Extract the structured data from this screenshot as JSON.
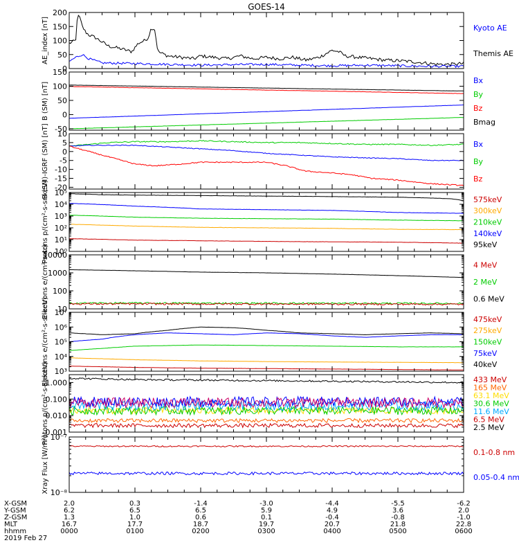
{
  "title": "GOES-14",
  "chart_data": [
    {
      "type": "line",
      "ylabel": "AE_index [nT]",
      "ylim": [
        0,
        200
      ],
      "yticks": [
        0,
        50,
        100,
        150,
        200
      ],
      "legend": [
        {
          "name": "Kyoto AE",
          "color": "#0000ff"
        },
        {
          "name": "Themis AE",
          "color": "#000000"
        }
      ],
      "series": [
        {
          "name": "Themis AE",
          "color": "#000000",
          "noise": 6,
          "x": [
            0,
            0.1,
            0.12,
            0.15,
            0.2,
            0.25,
            0.3,
            0.4,
            0.6,
            0.8,
            0.95,
            1.05,
            1.15,
            1.2,
            1.25,
            1.3,
            1.35,
            1.5,
            1.7,
            1.9,
            2.0,
            2.2,
            2.4,
            2.5,
            2.6,
            2.8,
            3.0,
            3.2,
            3.4,
            3.6,
            3.8,
            4.0,
            4.1,
            4.2,
            4.4,
            4.6,
            4.8,
            5.0,
            5.2,
            5.4,
            5.6,
            5.8,
            6.0
          ],
          "y": [
            90,
            100,
            175,
            190,
            150,
            130,
            120,
            110,
            80,
            70,
            60,
            90,
            100,
            110,
            145,
            140,
            60,
            45,
            40,
            35,
            45,
            40,
            35,
            40,
            45,
            35,
            40,
            35,
            40,
            30,
            40,
            65,
            60,
            45,
            40,
            35,
            30,
            28,
            25,
            20,
            15,
            15,
            18
          ]
        },
        {
          "name": "Kyoto AE",
          "color": "#0000ff",
          "noise": 4,
          "x": [
            0,
            0.1,
            0.2,
            0.3,
            0.5,
            1.0,
            1.5,
            2.0,
            2.5,
            3.0,
            3.5,
            4.0,
            4.5,
            5.0,
            5.5,
            6.0
          ],
          "y": [
            25,
            40,
            50,
            35,
            20,
            18,
            15,
            12,
            14,
            15,
            12,
            10,
            12,
            10,
            8,
            8
          ]
        }
      ]
    },
    {
      "type": "line",
      "ylabel": "B (SM) [nT]",
      "ylim": [
        -55,
        150
      ],
      "yticks": [
        -50,
        0,
        50,
        100,
        150
      ],
      "legend": [
        {
          "name": "Bx",
          "color": "#0000ff"
        },
        {
          "name": "By",
          "color": "#00cc00"
        },
        {
          "name": "Bz",
          "color": "#ff0000"
        },
        {
          "name": "Bmag",
          "color": "#000000"
        }
      ],
      "series": [
        {
          "name": "Bmag",
          "color": "#000000",
          "noise": 0.3,
          "x": [
            0,
            6.0
          ],
          "y": [
            104,
            83
          ]
        },
        {
          "name": "Bz",
          "color": "#ff0000",
          "noise": 0.5,
          "x": [
            0,
            6.0
          ],
          "y": [
            99,
            74
          ]
        },
        {
          "name": "Bx",
          "color": "#0000ff",
          "noise": 0.3,
          "x": [
            0,
            6.0
          ],
          "y": [
            -13,
            34
          ]
        },
        {
          "name": "By",
          "color": "#00cc00",
          "noise": 0.3,
          "x": [
            0,
            6.0
          ],
          "y": [
            -50,
            -10
          ]
        }
      ]
    },
    {
      "type": "line",
      "ylabel": "B (SM)-IGRF (SM) [nT]",
      "ylim": [
        -21,
        10
      ],
      "yticks": [
        -20,
        -15,
        -10,
        -5,
        0,
        5,
        10
      ],
      "legend": [
        {
          "name": "Bx",
          "color": "#0000ff"
        },
        {
          "name": "By",
          "color": "#00cc00"
        },
        {
          "name": "Bz",
          "color": "#ff0000"
        }
      ],
      "series": [
        {
          "name": "By",
          "color": "#00cc00",
          "noise": 0.3,
          "x": [
            0,
            0.3,
            0.6,
            1.0,
            1.5,
            2.0,
            2.5,
            3.0,
            3.5,
            4.0,
            4.5,
            5.0,
            5.5,
            6.0
          ],
          "y": [
            3,
            4,
            5,
            5.5,
            5.5,
            6,
            5.5,
            5,
            5,
            4.5,
            4,
            4,
            3.5,
            4
          ]
        },
        {
          "name": "Bx",
          "color": "#0000ff",
          "noise": 0.2,
          "x": [
            0,
            0.3,
            0.6,
            1.0,
            1.5,
            2.0,
            2.5,
            3.0,
            3.5,
            4.0,
            4.5,
            5.0,
            5.5,
            6.0
          ],
          "y": [
            3,
            3.5,
            3.5,
            3.5,
            2.5,
            1.5,
            0.5,
            -1,
            -2,
            -3,
            -3.5,
            -4,
            -5,
            -5
          ]
        },
        {
          "name": "Bz",
          "color": "#ff0000",
          "noise": 0.3,
          "x": [
            0,
            0.2,
            0.5,
            0.8,
            1.0,
            1.3,
            1.7,
            2.0,
            2.5,
            3.0,
            3.3,
            3.6,
            4.0,
            4.3,
            4.6,
            5.0,
            5.5,
            6.0
          ],
          "y": [
            3,
            1,
            -2,
            -5,
            -7,
            -8,
            -7,
            -6,
            -6,
            -6,
            -8,
            -11,
            -12,
            -13,
            -15,
            -16,
            -18,
            -19
          ]
        }
      ]
    },
    {
      "type": "line",
      "log": true,
      "ylabel": "Protons p/(cm²-s-sr-keV)",
      "ylim": [
        1,
        100000
      ],
      "yticks": [
        1,
        10,
        100,
        1000,
        10000,
        100000
      ],
      "ytick_labels": [
        "10⁰",
        "10¹",
        "10²",
        "10³",
        "10⁴",
        "10⁵"
      ],
      "legend": [
        {
          "name": "575keV",
          "color": "#cc0000"
        },
        {
          "name": "300keV",
          "color": "#ffaa00"
        },
        {
          "name": "210keV",
          "color": "#00cc00"
        },
        {
          "name": "140keV",
          "color": "#0000ff"
        },
        {
          "name": "95keV",
          "color": "#000000"
        }
      ],
      "series": [
        {
          "name": "95keV",
          "color": "#000000",
          "noise": 0.01,
          "x": [
            0,
            0.5,
            1,
            2,
            3,
            4,
            5,
            5.8,
            6.0
          ],
          "y": [
            80000,
            65000,
            60000,
            55000,
            50000,
            45000,
            40000,
            30000,
            20000
          ]
        },
        {
          "name": "140keV",
          "color": "#0000ff",
          "noise": 0.01,
          "x": [
            0,
            1,
            2,
            3,
            4,
            5,
            6.0
          ],
          "y": [
            12000,
            7000,
            4000,
            3500,
            3000,
            2000,
            1700
          ]
        },
        {
          "name": "210keV",
          "color": "#00cc00",
          "noise": 0.01,
          "x": [
            0,
            1,
            2,
            3,
            4,
            5,
            6.0
          ],
          "y": [
            1200,
            800,
            650,
            600,
            550,
            450,
            400
          ]
        },
        {
          "name": "300keV",
          "color": "#ffaa00",
          "noise": 0.01,
          "x": [
            0,
            1,
            2,
            3,
            4,
            5,
            6.0
          ],
          "y": [
            200,
            140,
            110,
            100,
            90,
            75,
            70
          ]
        },
        {
          "name": "575keV",
          "color": "#cc0000",
          "noise": 0.01,
          "x": [
            0,
            1,
            2,
            3,
            4,
            5,
            6.0
          ],
          "y": [
            12,
            9,
            8,
            7,
            6.5,
            6,
            5
          ]
        }
      ]
    },
    {
      "type": "line",
      "log": true,
      "ylabel": "Electrons e/(cm²-s-sr)",
      "ylim": [
        10,
        10000
      ],
      "yticks": [
        10,
        100,
        1000,
        10000
      ],
      "ytick_labels": [
        "10",
        "100",
        "1000",
        "10000"
      ],
      "legend": [
        {
          "name": "4 MeV",
          "color": "#cc0000"
        },
        {
          "name": "2 MeV",
          "color": "#00cc00"
        },
        {
          "name": "0.6 MeV",
          "color": "#000000"
        }
      ],
      "series": [
        {
          "name": "0.6 MeV",
          "color": "#000000",
          "noise": 0.004,
          "x": [
            0,
            1,
            2,
            3,
            4,
            5,
            6.0
          ],
          "y": [
            1500,
            1300,
            1100,
            1000,
            850,
            700,
            550
          ]
        },
        {
          "name": "2 MeV",
          "color": "#00cc00",
          "noise": 0.05,
          "x": [
            0,
            6.0
          ],
          "y": [
            21,
            20
          ]
        },
        {
          "name": "4 MeV",
          "color": "#cc0000",
          "noise": 0.05,
          "x": [
            0,
            6.0
          ],
          "y": [
            19,
            18
          ]
        }
      ]
    },
    {
      "type": "line",
      "log": true,
      "ylabel": "Electrons e/(cm²-s-sr-keV)",
      "ylim": [
        1000,
        10000000
      ],
      "yticks": [
        1000,
        10000,
        100000,
        1000000,
        10000000
      ],
      "ytick_labels": [
        "10³",
        "10⁴",
        "10⁵",
        "10⁶",
        "10⁷"
      ],
      "legend": [
        {
          "name": "475keV",
          "color": "#cc0000"
        },
        {
          "name": "275keV",
          "color": "#ffaa00"
        },
        {
          "name": "150keV",
          "color": "#00cc00"
        },
        {
          "name": "75keV",
          "color": "#0000ff"
        },
        {
          "name": "40keV",
          "color": "#000000"
        }
      ],
      "series": [
        {
          "name": "40keV",
          "color": "#000000",
          "noise": 0.005,
          "x": [
            0,
            0.5,
            1,
            1.5,
            2,
            2.5,
            3,
            3.5,
            4,
            4.5,
            5,
            5.5,
            6.0
          ],
          "y": [
            400000,
            300000,
            350000,
            600000,
            1000000,
            900000,
            600000,
            400000,
            350000,
            300000,
            350000,
            400000,
            350000
          ]
        },
        {
          "name": "75keV",
          "color": "#0000ff",
          "noise": 0.005,
          "x": [
            0,
            0.5,
            1,
            1.5,
            2,
            2.5,
            3,
            3.5,
            4,
            4.5,
            5,
            5.5,
            6.0
          ],
          "y": [
            100000,
            150000,
            300000,
            400000,
            350000,
            300000,
            400000,
            350000,
            250000,
            200000,
            250000,
            300000,
            300000
          ]
        },
        {
          "name": "150keV",
          "color": "#00cc00",
          "noise": 0.005,
          "x": [
            0,
            0.5,
            1,
            2,
            3,
            4,
            5,
            6.0
          ],
          "y": [
            25000,
            35000,
            50000,
            60000,
            55000,
            50000,
            45000,
            45000
          ]
        },
        {
          "name": "275keV",
          "color": "#ffaa00",
          "noise": 0.005,
          "x": [
            0,
            1,
            2,
            3,
            4,
            5,
            6.0
          ],
          "y": [
            8000,
            6000,
            5000,
            4500,
            4200,
            4000,
            3800
          ]
        },
        {
          "name": "475keV",
          "color": "#cc0000",
          "noise": 0.005,
          "x": [
            0,
            1,
            2,
            3,
            4,
            5,
            6.0
          ],
          "y": [
            2200,
            1800,
            1600,
            1500,
            1400,
            1300,
            1200
          ]
        }
      ]
    },
    {
      "type": "line",
      "log": true,
      "ylabel": "Protons p/(cm²-s-sr-keV)",
      "ylim": [
        0.001,
        3
      ],
      "yticks": [
        0.001,
        0.01,
        0.1,
        1
      ],
      "ytick_labels": [
        "0.001",
        "0.010",
        "0.100",
        "1.000"
      ],
      "legend": [
        {
          "name": "433 MeV",
          "color": "#cc0000"
        },
        {
          "name": "165 MeV",
          "color": "#ff6600"
        },
        {
          "name": "63.1 MeV",
          "color": "#ffdd00"
        },
        {
          "name": "30.6 MeV",
          "color": "#00cc00"
        },
        {
          "name": "11.6 MeV",
          "color": "#00aaff"
        },
        {
          "name": "6.5 MeV",
          "color": "#cc0000"
        },
        {
          "name": "2.5 MeV",
          "color": "#000000"
        }
      ],
      "series": [
        {
          "name": "2.5 MeV",
          "color": "#000000",
          "noise": 0.05,
          "x": [
            0,
            1,
            2,
            3,
            4,
            5,
            6.0
          ],
          "y": [
            1.8,
            1.5,
            1.4,
            1.3,
            1.2,
            1.1,
            1.0
          ]
        },
        {
          "name": "6.5 MeV",
          "color": "#cc0000",
          "noise": 0.12,
          "x": [
            0,
            6.0
          ],
          "y": [
            0.0025,
            0.0025
          ]
        },
        {
          "name": "165 MeV",
          "color": "#ff6600",
          "noise": 0.12,
          "x": [
            0,
            6.0
          ],
          "y": [
            0.005,
            0.005
          ]
        },
        {
          "name": "63.1 MeV",
          "color": "#ffdd00",
          "noise": 0.2,
          "x": [
            0,
            6.0
          ],
          "y": [
            0.02,
            0.02
          ]
        },
        {
          "name": "30.6 MeV",
          "color": "#00cc00",
          "noise": 0.25,
          "x": [
            0,
            6.0
          ],
          "y": [
            0.02,
            0.02
          ]
        },
        {
          "name": "11.6 MeV",
          "color": "#00aaff",
          "noise": 0.28,
          "x": [
            0,
            6.0
          ],
          "y": [
            0.04,
            0.04
          ]
        },
        {
          "name": "433 MeV",
          "color": "#0000ff",
          "noise": 0.3,
          "x": [
            0,
            6.0
          ],
          "y": [
            0.07,
            0.07
          ]
        },
        {
          "name": "433 MeV",
          "color": "#cc0066",
          "noise": 0.3,
          "x": [
            0,
            6.0
          ],
          "y": [
            0.06,
            0.06
          ]
        }
      ]
    },
    {
      "type": "line",
      "log": true,
      "ylabel": "Xray Flux [W/m²]",
      "ylim": [
        1e-08,
        1e-07
      ],
      "yticks": [
        1e-08,
        1e-07
      ],
      "ytick_labels": [
        "10⁻⁸",
        "10⁻⁷"
      ],
      "legend": [
        {
          "name": "0.1-0.8 nm",
          "color": "#cc0000"
        },
        {
          "name": "0.05-0.4 nm",
          "color": "#0000ff"
        }
      ],
      "series": [
        {
          "name": "0.1-0.8 nm",
          "color": "#cc0000",
          "noise": 0.012,
          "x": [
            0,
            6.0
          ],
          "y": [
            6.8e-08,
            6.8e-08
          ]
        },
        {
          "name": "0.05-0.4 nm",
          "color": "#0000ff",
          "noise": 0.025,
          "x": [
            0,
            6.0
          ],
          "y": [
            2.2e-08,
            2.2e-08
          ]
        }
      ]
    }
  ],
  "ephemeris": {
    "rows": [
      {
        "label": "X-GSM",
        "values": [
          "2.0",
          "0.3",
          "-1.4",
          "-3.0",
          "-4.4",
          "-5.5",
          "-6.2"
        ]
      },
      {
        "label": "Y-GSM",
        "values": [
          "6.2",
          "6.5",
          "6.5",
          "5.9",
          "4.9",
          "3.6",
          "2.0"
        ]
      },
      {
        "label": "Z-GSM",
        "values": [
          "1.3",
          "1.0",
          "0.6",
          "0.1",
          "-0.4",
          "-0.8",
          "-1.0"
        ]
      },
      {
        "label": "MLT",
        "values": [
          "16.7",
          "17.7",
          "18.7",
          "19.7",
          "20.7",
          "21.8",
          "22.8"
        ]
      },
      {
        "label": "hhmm",
        "values": [
          "0000",
          "0100",
          "0200",
          "0300",
          "0400",
          "0500",
          "0600"
        ]
      }
    ],
    "date": "2019 Feb 27"
  }
}
